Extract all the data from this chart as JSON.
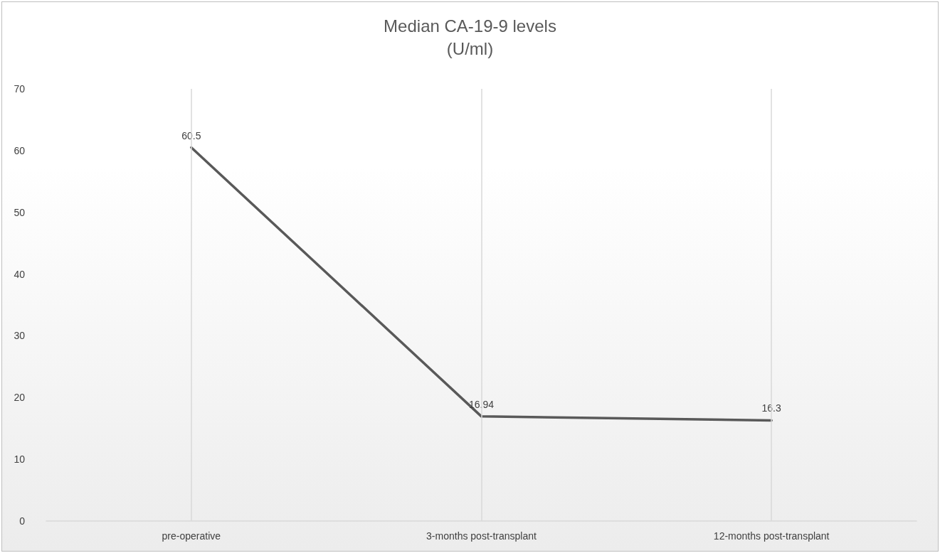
{
  "chart_data": {
    "type": "line",
    "title": "Median CA-19-9 levels\n(U/ml)",
    "categories": [
      "pre-operative",
      "3-months post-transplant",
      "12-months post-transplant"
    ],
    "series": [
      {
        "color": "#595959",
        "values": [
          60.5,
          16.94,
          16.3
        ]
      }
    ],
    "ylim": [
      0,
      70
    ],
    "yticks": [
      0,
      10,
      20,
      30,
      40,
      50,
      60,
      70
    ],
    "grid": false,
    "marker": "none",
    "line_style": "solid",
    "data_labels": true,
    "ref_lines": [
      {
        "axis": "x",
        "value": "pre-operative",
        "color": "#d9d9d9"
      },
      {
        "axis": "x",
        "value": "3-months post-transplant",
        "color": "#d9d9d9"
      },
      {
        "axis": "x",
        "value": "12-months post-transplant",
        "color": "#d9d9d9"
      }
    ]
  }
}
